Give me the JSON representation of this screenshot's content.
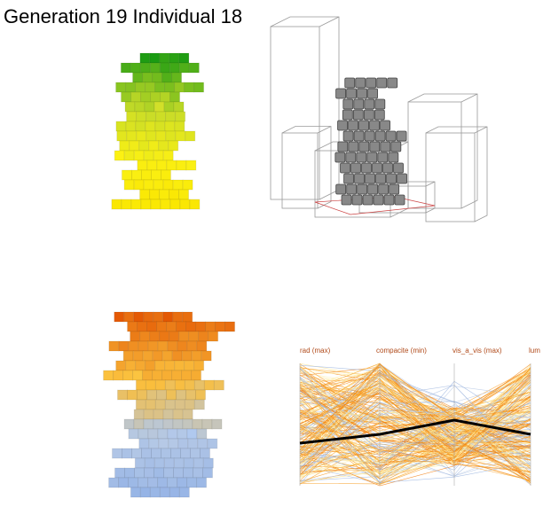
{
  "header": {
    "title": "Generation 19 Individual 18"
  },
  "parallel_plot": {
    "axes": [
      "rad (max)",
      "compacite (min)",
      "vis_a_vis (max)",
      "lum"
    ]
  }
}
